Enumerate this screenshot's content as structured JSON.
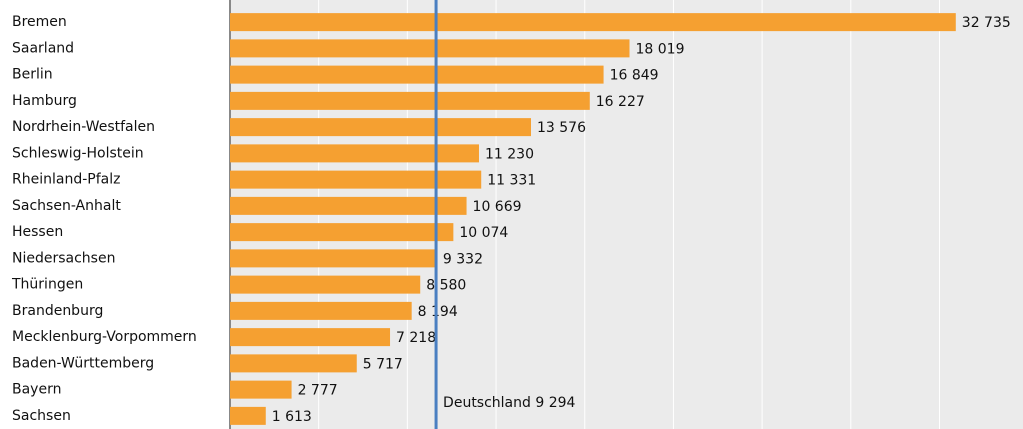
{
  "chart_data": {
    "type": "bar",
    "orientation": "horizontal",
    "categories": [
      "Bremen",
      "Saarland",
      "Berlin",
      "Hamburg",
      "Nordrhein-Westfalen",
      "Schleswig-Holstein",
      "Rheinland-Pfalz",
      "Sachsen-Anhalt",
      "Hessen",
      "Niedersachsen",
      "Thüringen",
      "Brandenburg",
      "Mecklenburg-Vorpommern",
      "Baden-Württemberg",
      "Bayern",
      "Sachsen"
    ],
    "values": [
      32735,
      18019,
      16849,
      16227,
      13576,
      11230,
      11331,
      10669,
      10074,
      9332,
      8580,
      8194,
      7218,
      5717,
      2777,
      1613
    ],
    "value_labels": [
      "32 735",
      "18 019",
      "16 849",
      "16 227",
      "13 576",
      "11 230",
      "11 331",
      "10 669",
      "10 074",
      "9 332",
      "8 580",
      "8 194",
      "7 218",
      "5 717",
      "2 777",
      "1 613"
    ],
    "color": "#f5a031",
    "xlim": [
      0,
      35000
    ],
    "xticks": [
      0,
      4000,
      8000,
      12000,
      16000,
      20000,
      24000,
      28000,
      32000
    ],
    "grid": true,
    "reference_line": {
      "value": 9294,
      "label": "Deutschland 9 294",
      "color": "#4a7fc1"
    }
  }
}
